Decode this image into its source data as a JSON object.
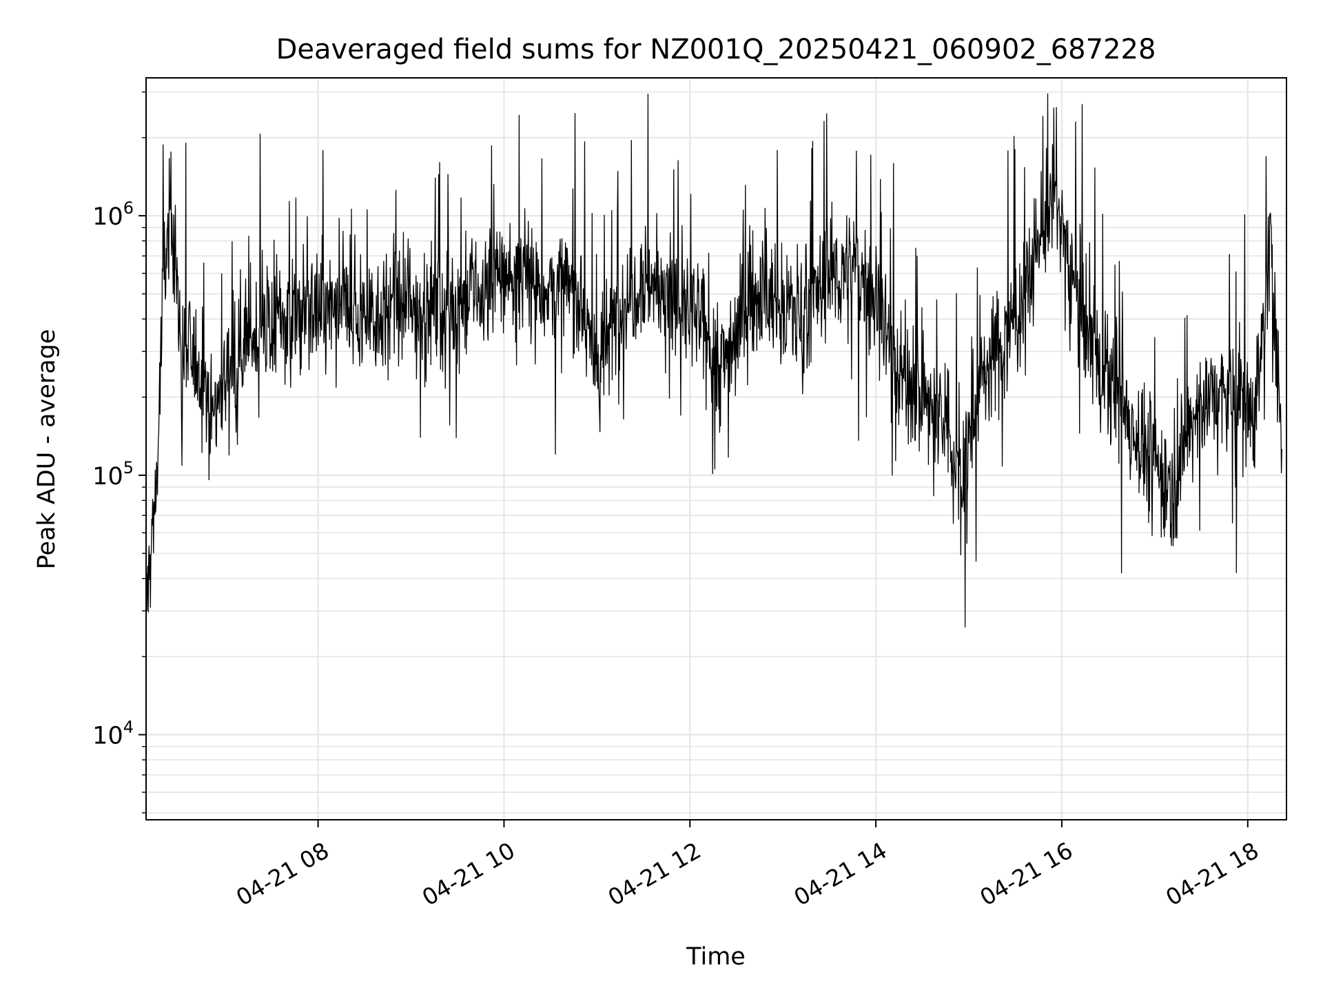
{
  "chart_data": {
    "type": "line",
    "title": "Deaveraged field sums for NZ001Q_20250421_060902_687228",
    "xlabel": "Time",
    "ylabel": "Peak ADU - average",
    "x_scale": "time",
    "y_scale": "log",
    "xlim": [
      "2025-04-21 06:09",
      "2025-04-21 18:25"
    ],
    "ylim": [
      4700,
      3400000
    ],
    "x_ticks": [
      "04-21 08",
      "04-21 10",
      "04-21 12",
      "04-21 14",
      "04-21 16",
      "04-21 18"
    ],
    "y_ticks": [
      {
        "base": "10",
        "exp": "4",
        "value": 10000
      },
      {
        "base": "10",
        "exp": "5",
        "value": 100000
      },
      {
        "base": "10",
        "exp": "6",
        "value": 1000000
      }
    ],
    "grid": true,
    "line_color": "#000000",
    "series": [
      {
        "x": [
          "2025-04-21 06:09",
          "2025-04-21 06:12",
          "2025-04-21 06:16",
          "2025-04-21 06:20",
          "2025-04-21 06:25",
          "2025-04-21 06:32",
          "2025-04-21 06:40",
          "2025-04-21 06:45",
          "2025-04-21 06:52",
          "2025-04-21 07:05",
          "2025-04-21 07:20",
          "2025-04-21 07:35",
          "2025-04-21 07:50",
          "2025-04-21 08:10",
          "2025-04-21 08:30",
          "2025-04-21 09:00",
          "2025-04-21 09:30",
          "2025-04-21 09:45",
          "2025-04-21 10:00",
          "2025-04-21 10:30",
          "2025-04-21 10:50",
          "2025-04-21 11:00",
          "2025-04-21 11:15",
          "2025-04-21 11:30",
          "2025-04-21 11:50",
          "2025-04-21 12:05",
          "2025-04-21 12:20",
          "2025-04-21 12:40",
          "2025-04-21 13:00",
          "2025-04-21 13:15",
          "2025-04-21 13:30",
          "2025-04-21 13:50",
          "2025-04-21 14:00",
          "2025-04-21 14:15",
          "2025-04-21 14:30",
          "2025-04-21 14:45",
          "2025-04-21 14:55",
          "2025-04-21 15:10",
          "2025-04-21 15:30",
          "2025-04-21 15:45",
          "2025-04-21 15:55",
          "2025-04-21 16:10",
          "2025-04-21 16:25",
          "2025-04-21 16:40",
          "2025-04-21 16:55",
          "2025-04-21 17:10",
          "2025-04-21 17:30",
          "2025-04-21 17:50",
          "2025-04-21 18:05",
          "2025-04-21 18:15",
          "2025-04-21 18:22"
        ],
        "y": [
          30000,
          50000,
          100000,
          500000,
          1200000,
          300000,
          280000,
          260000,
          170000,
          300000,
          350000,
          400000,
          420000,
          430000,
          420000,
          440000,
          450000,
          500000,
          600000,
          520000,
          500000,
          250000,
          450000,
          600000,
          450000,
          400000,
          260000,
          500000,
          450000,
          420000,
          600000,
          600000,
          500000,
          250000,
          200000,
          150000,
          100000,
          250000,
          400000,
          800000,
          1200000,
          500000,
          250000,
          180000,
          120000,
          90000,
          200000,
          200000,
          180000,
          800000,
          110000
        ]
      }
    ]
  }
}
